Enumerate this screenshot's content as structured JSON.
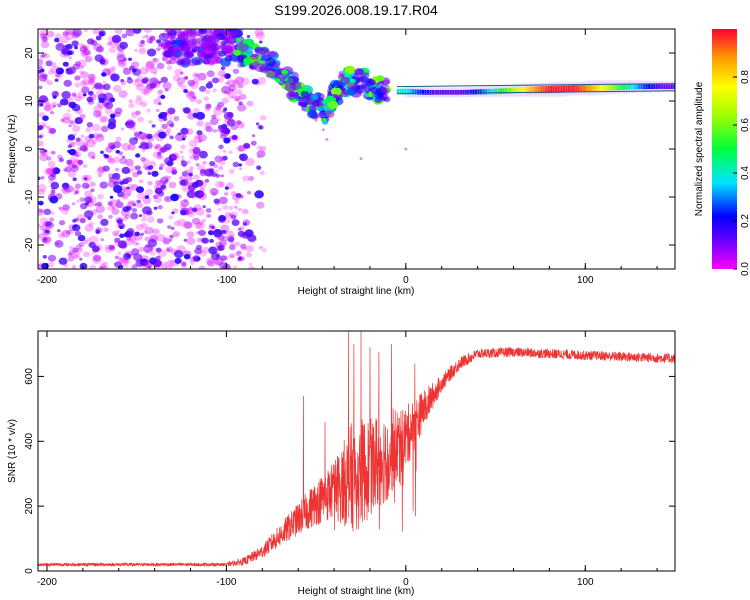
{
  "title": "S199.2026.008.19.17.R04",
  "colors": {
    "snr_line": "#ee3333",
    "axis": "#000000",
    "band_edge": "#1a5c8a"
  },
  "chart_data": [
    {
      "type": "heatmap",
      "name": "spectrogram",
      "xlabel": "Height of straight line (km)",
      "ylabel": "Frequency (Hz)",
      "xlim": [
        -205,
        150
      ],
      "ylim": [
        -25,
        25
      ],
      "xticks": [
        -200,
        -100,
        0,
        100
      ],
      "xtick_labels": [
        "-200",
        "-100",
        "0",
        "100"
      ],
      "yticks": [
        -20,
        -10,
        0,
        10,
        20
      ],
      "ytick_labels": [
        "-20",
        "-10",
        "0",
        "10",
        "20"
      ],
      "colorbar": {
        "label": "Normalized spectral amplitude",
        "range": [
          0,
          1
        ],
        "ticks": [
          0.0,
          0.2,
          0.4,
          0.6,
          0.8
        ],
        "tick_labels": [
          "0.0",
          "0.2",
          "0.4",
          "0.6",
          "0.8"
        ]
      },
      "carrier_track": {
        "x": [
          -95,
          -85,
          -75,
          -65,
          -55,
          -45,
          -35,
          -25,
          -15,
          -5,
          0,
          10,
          30,
          50,
          70,
          90,
          110,
          130,
          150
        ],
        "freq": [
          20.5,
          19.5,
          17.5,
          14.0,
          10.0,
          8.0,
          14.0,
          14.0,
          12.5,
          12.0,
          12.0,
          11.8,
          11.8,
          12.0,
          12.3,
          12.5,
          12.8,
          13.0,
          13.0
        ]
      },
      "noise_region_x": [
        -205,
        -90
      ],
      "stable_band_hz": [
        11.5,
        13.0
      ]
    },
    {
      "type": "line",
      "name": "snr",
      "xlabel": "Height of straight line (km)",
      "ylabel": "SNR (10 * v/v)",
      "xlim": [
        -205,
        150
      ],
      "ylim": [
        0,
        740
      ],
      "xticks": [
        -200,
        -100,
        0,
        100
      ],
      "xtick_labels": [
        "-200",
        "-100",
        "0",
        "100"
      ],
      "yticks": [
        0,
        200,
        400,
        600
      ],
      "ytick_labels": [
        "0",
        "200",
        "400",
        "600"
      ],
      "envelope": {
        "x": [
          -205,
          -100,
          -90,
          -80,
          -70,
          -60,
          -50,
          -40,
          -30,
          -20,
          -10,
          0,
          10,
          20,
          30,
          40,
          60,
          100,
          150
        ],
        "y": [
          20,
          20,
          30,
          60,
          110,
          160,
          210,
          250,
          290,
          320,
          360,
          410,
          500,
          580,
          640,
          670,
          675,
          665,
          655
        ]
      },
      "noise_amplitude": {
        "x": [
          -205,
          -100,
          -80,
          -60,
          -40,
          -30,
          -20,
          -10,
          0,
          10,
          20,
          40,
          150
        ],
        "y": [
          5,
          5,
          20,
          50,
          90,
          170,
          160,
          140,
          100,
          60,
          25,
          15,
          15
        ]
      },
      "spikes": [
        {
          "x": -57,
          "y": 540
        },
        {
          "x": -45,
          "y": 460
        },
        {
          "x": -32,
          "y": 740
        },
        {
          "x": -29,
          "y": 700
        },
        {
          "x": -25,
          "y": 740
        },
        {
          "x": -20,
          "y": 690
        },
        {
          "x": -15,
          "y": 675
        },
        {
          "x": -8,
          "y": 700
        },
        {
          "x": 5,
          "y": 640
        }
      ]
    }
  ]
}
